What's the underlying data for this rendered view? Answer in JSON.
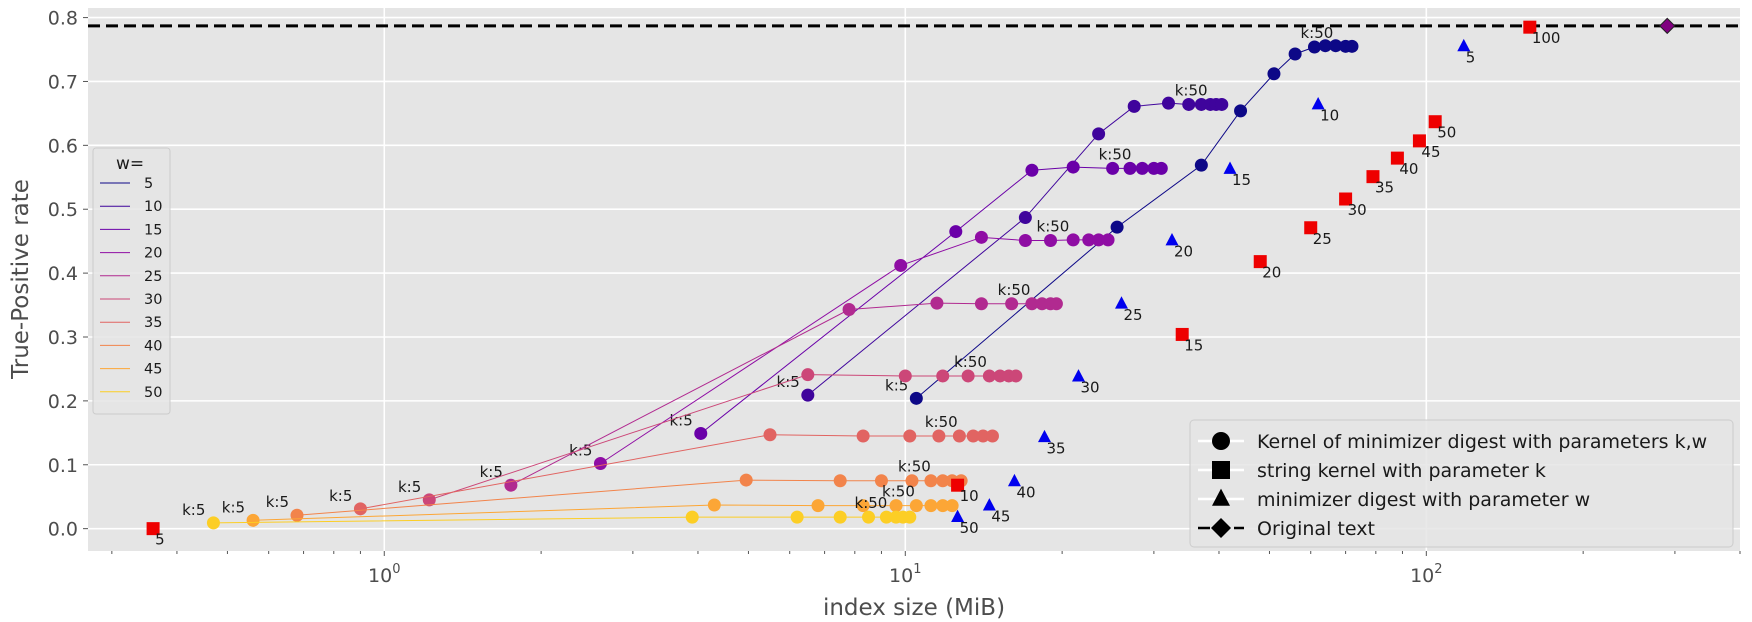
{
  "chart_data": {
    "type": "scatter",
    "x_scale": "log",
    "xlabel": "index size (MiB)",
    "ylabel": "True-Positive rate",
    "xlim": [
      0.27,
      400
    ],
    "ylim": [
      -0.035,
      0.815
    ],
    "grid": true,
    "x_ticks": [
      {
        "value": 1,
        "base": "10",
        "exp": "0"
      },
      {
        "value": 10,
        "base": "10",
        "exp": "1"
      },
      {
        "value": 100,
        "base": "10",
        "exp": "2"
      }
    ],
    "y_ticks": [
      "0.0",
      "0.1",
      "0.2",
      "0.3",
      "0.4",
      "0.5",
      "0.6",
      "0.7",
      "0.8"
    ],
    "original_text": {
      "tp": 0.787,
      "x": 290
    },
    "w_legend": {
      "title": "w=",
      "placement": "center-left",
      "entries": [
        {
          "label": "5",
          "color": "#0d0887"
        },
        {
          "label": "10",
          "color": "#3f049c"
        },
        {
          "label": "15",
          "color": "#6a00a8"
        },
        {
          "label": "20",
          "color": "#8f0da4"
        },
        {
          "label": "25",
          "color": "#b12a90"
        },
        {
          "label": "30",
          "color": "#cc4778"
        },
        {
          "label": "35",
          "color": "#e16462"
        },
        {
          "label": "40",
          "color": "#f2844b"
        },
        {
          "label": "45",
          "color": "#fca636"
        },
        {
          "label": "50",
          "color": "#fcce25"
        }
      ]
    },
    "marker_legend": {
      "placement": "lower-right",
      "entries": [
        {
          "marker": "circle",
          "label": "Kernel of minimizer digest with parameters k,w"
        },
        {
          "marker": "square",
          "label": "string kernel with parameter k"
        },
        {
          "marker": "triangle",
          "label": "minimizer digest with parameter w"
        },
        {
          "marker": "diamond",
          "label": "Original text"
        }
      ]
    },
    "series": [
      {
        "name": "w=5",
        "color": "#0d0887",
        "points": [
          [
            10.5,
            0.204
          ],
          [
            25.5,
            0.472
          ],
          [
            37,
            0.569
          ],
          [
            44,
            0.654
          ],
          [
            51,
            0.712
          ],
          [
            56,
            0.743
          ],
          [
            61,
            0.754
          ],
          [
            64,
            0.756
          ],
          [
            67,
            0.756
          ],
          [
            70,
            0.755
          ],
          [
            72,
            0.755
          ]
        ],
        "k5_label": "k:5",
        "k50_label": "k:50"
      },
      {
        "name": "w=10",
        "color": "#3f049c",
        "points": [
          [
            6.5,
            0.209
          ],
          [
            17,
            0.487
          ],
          [
            23.5,
            0.618
          ],
          [
            27.5,
            0.661
          ],
          [
            32,
            0.666
          ],
          [
            35,
            0.664
          ],
          [
            37,
            0.664
          ],
          [
            38.5,
            0.664
          ],
          [
            39.5,
            0.664
          ],
          [
            40.5,
            0.664
          ]
        ],
        "k5_label": "k:5",
        "k50_label": "k:50"
      },
      {
        "name": "w=15",
        "color": "#6a00a8",
        "points": [
          [
            4.05,
            0.149
          ],
          [
            12.5,
            0.465
          ],
          [
            17.5,
            0.561
          ],
          [
            21,
            0.566
          ],
          [
            25,
            0.564
          ],
          [
            27,
            0.564
          ],
          [
            28.5,
            0.564
          ],
          [
            30,
            0.564
          ],
          [
            31,
            0.564
          ]
        ],
        "k5_label": "k:5",
        "k50_label": "k:50"
      },
      {
        "name": "w=20",
        "color": "#8f0da4",
        "points": [
          [
            2.6,
            0.102
          ],
          [
            9.8,
            0.412
          ],
          [
            14,
            0.456
          ],
          [
            17,
            0.451
          ],
          [
            19,
            0.451
          ],
          [
            21,
            0.452
          ],
          [
            22.5,
            0.452
          ],
          [
            23.5,
            0.452
          ],
          [
            24.5,
            0.452
          ]
        ],
        "k5_label": "k:5",
        "k50_label": "k:50"
      },
      {
        "name": "w=25",
        "color": "#b12a90",
        "points": [
          [
            1.75,
            0.068
          ],
          [
            7.8,
            0.343
          ],
          [
            11.5,
            0.353
          ],
          [
            14,
            0.352
          ],
          [
            16,
            0.352
          ],
          [
            17.5,
            0.352
          ],
          [
            18.3,
            0.352
          ],
          [
            19,
            0.352
          ],
          [
            19.5,
            0.352
          ]
        ],
        "k5_label": "k:5",
        "k50_label": "k:50"
      },
      {
        "name": "w=30",
        "color": "#cc4778",
        "points": [
          [
            1.22,
            0.045
          ],
          [
            6.5,
            0.241
          ],
          [
            10,
            0.239
          ],
          [
            11.8,
            0.239
          ],
          [
            13.2,
            0.239
          ],
          [
            14.5,
            0.239
          ],
          [
            15.2,
            0.239
          ],
          [
            15.8,
            0.239
          ],
          [
            16.3,
            0.239
          ]
        ],
        "k5_label": "k:5",
        "k50_label": "k:50"
      },
      {
        "name": "w=35",
        "color": "#e16462",
        "points": [
          [
            0.9,
            0.031
          ],
          [
            5.5,
            0.147
          ],
          [
            8.3,
            0.145
          ],
          [
            10.2,
            0.145
          ],
          [
            11.6,
            0.145
          ],
          [
            12.7,
            0.145
          ],
          [
            13.5,
            0.145
          ],
          [
            14.1,
            0.145
          ],
          [
            14.7,
            0.145
          ]
        ],
        "k5_label": "k:5",
        "k50_label": "k:50"
      },
      {
        "name": "w=40",
        "color": "#f2844b",
        "points": [
          [
            0.68,
            0.021
          ],
          [
            4.95,
            0.076
          ],
          [
            7.5,
            0.075
          ],
          [
            9,
            0.075
          ],
          [
            10.3,
            0.075
          ],
          [
            11.2,
            0.075
          ],
          [
            11.8,
            0.075
          ],
          [
            12.3,
            0.075
          ],
          [
            12.8,
            0.075
          ]
        ],
        "k5_label": "k:5",
        "k50_label": "k:50"
      },
      {
        "name": "w=45",
        "color": "#fca636",
        "points": [
          [
            0.56,
            0.013
          ],
          [
            4.3,
            0.037
          ],
          [
            6.8,
            0.036
          ],
          [
            8.3,
            0.036
          ],
          [
            9.6,
            0.036
          ],
          [
            10.5,
            0.036
          ],
          [
            11.2,
            0.036
          ],
          [
            11.8,
            0.036
          ],
          [
            12.3,
            0.036
          ]
        ],
        "k5_label": "k:5",
        "k50_label": "k:50"
      },
      {
        "name": "w=50",
        "color": "#fcce25",
        "points": [
          [
            0.47,
            0.009
          ],
          [
            3.9,
            0.018
          ],
          [
            6.2,
            0.018
          ],
          [
            7.5,
            0.018
          ],
          [
            8.5,
            0.018
          ],
          [
            9.2,
            0.018
          ],
          [
            9.6,
            0.018
          ],
          [
            9.9,
            0.018
          ],
          [
            10.2,
            0.018
          ]
        ],
        "k5_label": "k:5",
        "k50_label": "k:50"
      }
    ],
    "string_kernel": {
      "color": "#ee0000",
      "points": [
        {
          "x": 0.36,
          "y": 0.0,
          "label": "5"
        },
        {
          "x": 12.6,
          "y": 0.068,
          "label": "10"
        },
        {
          "x": 34,
          "y": 0.304,
          "label": "15"
        },
        {
          "x": 48,
          "y": 0.418,
          "label": "20"
        },
        {
          "x": 60,
          "y": 0.471,
          "label": "25"
        },
        {
          "x": 70,
          "y": 0.516,
          "label": "30"
        },
        {
          "x": 79,
          "y": 0.551,
          "label": "35"
        },
        {
          "x": 88,
          "y": 0.58,
          "label": "40"
        },
        {
          "x": 97,
          "y": 0.607,
          "label": "45"
        },
        {
          "x": 104,
          "y": 0.637,
          "label": "50"
        },
        {
          "x": 158,
          "y": 0.785,
          "label": "100"
        }
      ]
    },
    "minimizer_digest": {
      "color": "#0000ee",
      "points": [
        {
          "x": 12.6,
          "y": 0.018,
          "label": "50"
        },
        {
          "x": 14.5,
          "y": 0.036,
          "label": "45"
        },
        {
          "x": 16.2,
          "y": 0.074,
          "label": "40"
        },
        {
          "x": 18.5,
          "y": 0.143,
          "label": "35"
        },
        {
          "x": 21.5,
          "y": 0.238,
          "label": "30"
        },
        {
          "x": 26,
          "y": 0.352,
          "label": "25"
        },
        {
          "x": 32.5,
          "y": 0.451,
          "label": "20"
        },
        {
          "x": 42,
          "y": 0.563,
          "label": "15"
        },
        {
          "x": 62,
          "y": 0.664,
          "label": "10"
        },
        {
          "x": 118,
          "y": 0.755,
          "label": "5"
        }
      ]
    }
  }
}
